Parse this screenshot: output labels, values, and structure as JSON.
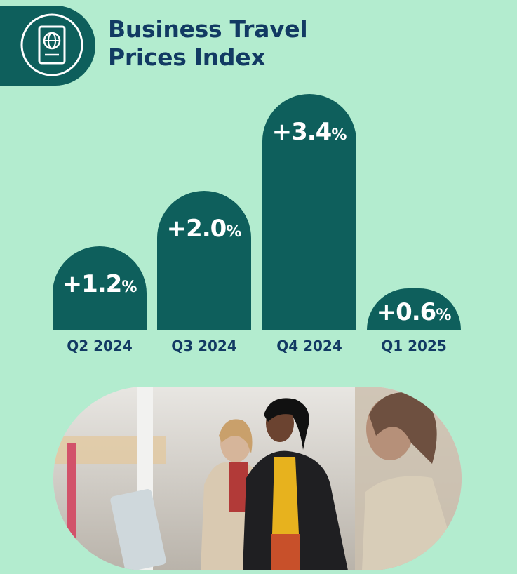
{
  "header": {
    "title_line1": "Business Travel",
    "title_line2": "Prices Index",
    "icon": "passport-icon"
  },
  "chart_data": {
    "type": "bar",
    "categories": [
      "Q2 2024",
      "Q3 2024",
      "Q4 2024",
      "Q1 2025"
    ],
    "values": [
      1.2,
      2.0,
      3.4,
      0.6
    ],
    "value_labels": [
      "+1.2",
      "+2.0",
      "+3.4",
      "+0.6"
    ],
    "unit": "%",
    "title": "Business Travel Prices Index",
    "xlabel": "",
    "ylabel": "",
    "ylim": [
      0,
      3.4
    ],
    "grid": false,
    "colors": {
      "bar": "#0e5f5c",
      "label": "#123a63",
      "background": "#b3eccf"
    }
  },
  "photo": {
    "subject": "travelers-at-airport-kiosk"
  }
}
